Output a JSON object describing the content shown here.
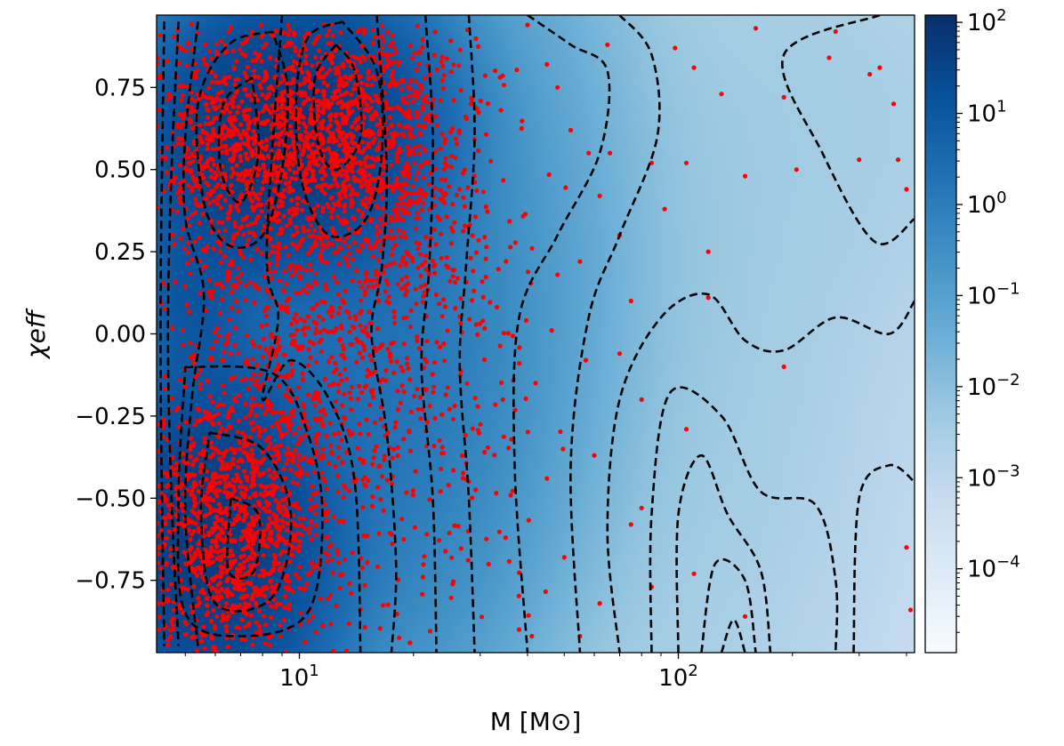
{
  "chart_data": {
    "type": "heatmap",
    "title": "",
    "xlabel": "M [M⊙]",
    "ylabel": "χeff",
    "x_scale": "log",
    "xlim": [
      4.2,
      420
    ],
    "ylim": [
      -0.97,
      0.97
    ],
    "x_ticks": [
      {
        "value": 10,
        "base": "10",
        "exp": "1"
      },
      {
        "value": 100,
        "base": "10",
        "exp": "2"
      }
    ],
    "y_ticks": [
      {
        "value": 0.75,
        "label": "0.75"
      },
      {
        "value": 0.5,
        "label": "0.50"
      },
      {
        "value": 0.25,
        "label": "0.25"
      },
      {
        "value": 0.0,
        "label": "0.00"
      },
      {
        "value": -0.25,
        "label": "−0.25"
      },
      {
        "value": -0.5,
        "label": "−0.50"
      },
      {
        "value": -0.75,
        "label": "−0.75"
      }
    ],
    "colorbar": {
      "scale": "log",
      "range": [
        1.2e-05,
        120
      ],
      "cmap": [
        "#f7fbff",
        "#deebf7",
        "#c6dbef",
        "#9ecae1",
        "#6baed6",
        "#4292c6",
        "#2171b5",
        "#08519c",
        "#08306b"
      ],
      "ticks": [
        {
          "value": 100,
          "base": "10",
          "exp": "2"
        },
        {
          "value": 10,
          "base": "10",
          "exp": "1"
        },
        {
          "value": 1,
          "base": "10",
          "exp": "0"
        },
        {
          "value": 0.1,
          "base": "10",
          "exp": "−1"
        },
        {
          "value": 0.01,
          "base": "10",
          "exp": "−2"
        },
        {
          "value": 0.001,
          "base": "10",
          "exp": "−3"
        },
        {
          "value": 0.0001,
          "base": "10",
          "exp": "−4"
        }
      ]
    },
    "density_clusters": [
      {
        "x": 10.5,
        "y": 0.62,
        "sx": 0.15,
        "sy": 0.2,
        "w": 60
      },
      {
        "x": 6.0,
        "y": -0.62,
        "sx": 0.14,
        "sy": 0.25,
        "w": 60
      },
      {
        "x": 6.5,
        "y": 0.55,
        "sx": 0.12,
        "sy": 0.2,
        "w": 30
      },
      {
        "x": 5.2,
        "y": 0.1,
        "sx": 0.08,
        "sy": 0.15,
        "w": 10
      },
      {
        "x": 14.0,
        "y": -0.1,
        "sx": 0.2,
        "sy": 0.45,
        "w": 2
      },
      {
        "x": 22.0,
        "y": 0.3,
        "sx": 0.22,
        "sy": 0.55,
        "w": 0.25
      },
      {
        "x": 60.0,
        "y": 0.0,
        "sx": 0.45,
        "sy": 0.9,
        "w": 0.006
      },
      {
        "x": 300.0,
        "y": 0.7,
        "sx": 0.35,
        "sy": 0.4,
        "w": 0.002
      }
    ],
    "scatter_series": {
      "name": "",
      "color": "#ff0000",
      "dense_regions": [
        {
          "x": 12.5,
          "y": 0.62,
          "sx": 0.14,
          "sy": 0.18,
          "n": 1100
        },
        {
          "x": 6.5,
          "y": 0.55,
          "sx": 0.12,
          "sy": 0.22,
          "n": 700
        },
        {
          "x": 6.5,
          "y": -0.6,
          "sx": 0.13,
          "sy": 0.22,
          "n": 1300
        },
        {
          "x": 11.0,
          "y": -0.05,
          "sx": 0.15,
          "sy": 0.35,
          "n": 700
        },
        {
          "x": 18.0,
          "y": 0.5,
          "sx": 0.14,
          "sy": 0.3,
          "n": 350
        },
        {
          "x": 22.0,
          "y": -0.2,
          "sx": 0.16,
          "sy": 0.45,
          "n": 250
        }
      ],
      "sparse_points": [
        [
          40,
          0.94
        ],
        [
          45,
          0.82
        ],
        [
          48,
          0.75
        ],
        [
          52,
          0.62
        ],
        [
          58,
          0.55
        ],
        [
          62,
          0.42
        ],
        [
          66,
          0.55
        ],
        [
          70,
          0.3
        ],
        [
          75,
          0.1
        ],
        [
          80,
          -0.2
        ],
        [
          85,
          0.52
        ],
        [
          92,
          0.38
        ],
        [
          98,
          0.87
        ],
        [
          105,
          0.52
        ],
        [
          110,
          0.81
        ],
        [
          120,
          0.25
        ],
        [
          130,
          0.73
        ],
        [
          150,
          0.48
        ],
        [
          160,
          0.93
        ],
        [
          190,
          0.72
        ],
        [
          205,
          0.5
        ],
        [
          250,
          0.84
        ],
        [
          260,
          0.92
        ],
        [
          300,
          0.53
        ],
        [
          320,
          0.79
        ],
        [
          340,
          0.81
        ],
        [
          370,
          0.7
        ],
        [
          380,
          0.53
        ],
        [
          400,
          0.44
        ],
        [
          120,
          0.11
        ],
        [
          190,
          -0.1
        ],
        [
          105,
          -0.29
        ],
        [
          75,
          -0.58
        ],
        [
          60,
          -0.37
        ],
        [
          62,
          -0.82
        ],
        [
          55,
          -0.92
        ],
        [
          110,
          -0.73
        ],
        [
          150,
          -0.86
        ],
        [
          400,
          -0.65
        ],
        [
          410,
          -0.84
        ],
        [
          57,
          -0.08
        ],
        [
          70,
          -0.06
        ],
        [
          80,
          -0.53
        ],
        [
          85,
          -0.77
        ],
        [
          45,
          -0.44
        ],
        [
          50,
          -0.68
        ],
        [
          38,
          -0.9
        ],
        [
          42,
          -0.15
        ],
        [
          35,
          -0.62
        ],
        [
          55,
          0.22
        ],
        [
          48,
          0.18
        ],
        [
          65,
          0.88
        ]
      ]
    },
    "contours": [
      [
        [
          4.4,
          0.95
        ],
        [
          4.3,
          0.0
        ],
        [
          4.4,
          -0.95
        ]
      ],
      [
        [
          4.8,
          0.95
        ],
        [
          4.6,
          0.5
        ],
        [
          4.5,
          0.0
        ],
        [
          4.6,
          -0.5
        ],
        [
          4.8,
          -0.95
        ]
      ],
      [
        [
          5.4,
          0.95
        ],
        [
          5.0,
          0.6
        ],
        [
          5.0,
          0.35
        ],
        [
          5.6,
          0.12
        ],
        [
          5.2,
          -0.2
        ],
        [
          5.0,
          -0.55
        ],
        [
          5.4,
          -0.95
        ]
      ],
      [
        [
          8.5,
          0.92
        ],
        [
          6.5,
          0.88
        ],
        [
          5.4,
          0.7
        ],
        [
          5.6,
          0.4
        ],
        [
          6.5,
          0.27
        ],
        [
          8.0,
          0.3
        ],
        [
          9.0,
          0.5
        ],
        [
          9.3,
          0.75
        ],
        [
          8.5,
          0.92
        ]
      ],
      [
        [
          7.5,
          0.78
        ],
        [
          6.3,
          0.7
        ],
        [
          6.2,
          0.5
        ],
        [
          7.0,
          0.4
        ],
        [
          7.8,
          0.55
        ],
        [
          7.5,
          0.78
        ]
      ],
      [
        [
          13.0,
          0.95
        ],
        [
          10.5,
          0.9
        ],
        [
          9.8,
          0.7
        ],
        [
          10.2,
          0.45
        ],
        [
          12.0,
          0.3
        ],
        [
          15.0,
          0.35
        ],
        [
          16.5,
          0.55
        ],
        [
          16.0,
          0.8
        ],
        [
          13.0,
          0.95
        ]
      ],
      [
        [
          12.5,
          0.88
        ],
        [
          11.0,
          0.78
        ],
        [
          11.2,
          0.58
        ],
        [
          12.5,
          0.5
        ],
        [
          14.5,
          0.6
        ],
        [
          14.0,
          0.8
        ],
        [
          12.5,
          0.88
        ]
      ],
      [
        [
          5.0,
          -0.1
        ],
        [
          8.5,
          -0.12
        ],
        [
          10.5,
          -0.3
        ],
        [
          11.5,
          -0.55
        ],
        [
          10.5,
          -0.85
        ],
        [
          7.0,
          -0.92
        ],
        [
          5.0,
          -0.85
        ],
        [
          4.8,
          -0.5
        ],
        [
          5.0,
          -0.1
        ]
      ],
      [
        [
          5.8,
          -0.3
        ],
        [
          8.0,
          -0.35
        ],
        [
          9.5,
          -0.55
        ],
        [
          8.5,
          -0.8
        ],
        [
          6.0,
          -0.82
        ],
        [
          5.5,
          -0.55
        ],
        [
          5.8,
          -0.3
        ]
      ],
      [
        [
          6.6,
          -0.5
        ],
        [
          7.8,
          -0.55
        ],
        [
          7.6,
          -0.72
        ],
        [
          6.5,
          -0.72
        ],
        [
          6.6,
          -0.5
        ]
      ],
      [
        [
          9.0,
          0.97
        ],
        [
          8.2,
          0.25
        ],
        [
          8.8,
          0.05
        ],
        [
          8.0,
          -0.2
        ],
        [
          9.5,
          -0.08
        ],
        [
          12.0,
          -0.2
        ],
        [
          14.0,
          -0.45
        ],
        [
          14.5,
          -0.97
        ]
      ],
      [
        [
          16.0,
          0.97
        ],
        [
          17.0,
          0.5
        ],
        [
          16.5,
          0.2
        ],
        [
          15.5,
          0.0
        ],
        [
          17.0,
          -0.3
        ],
        [
          18.0,
          -0.7
        ],
        [
          17.5,
          -0.97
        ]
      ],
      [
        [
          21.5,
          0.97
        ],
        [
          22.5,
          0.6
        ],
        [
          22.0,
          0.2
        ],
        [
          21.0,
          -0.1
        ],
        [
          22.5,
          -0.5
        ],
        [
          23.0,
          -0.97
        ]
      ],
      [
        [
          28.0,
          0.97
        ],
        [
          29.0,
          0.6
        ],
        [
          27.5,
          0.2
        ],
        [
          26.5,
          -0.1
        ],
        [
          28.0,
          -0.5
        ],
        [
          29.0,
          -0.97
        ]
      ],
      [
        [
          40.0,
          0.97
        ],
        [
          52.0,
          0.88
        ],
        [
          65.0,
          0.8
        ],
        [
          62.0,
          0.55
        ],
        [
          48.0,
          0.3
        ],
        [
          38.0,
          0.05
        ],
        [
          37.0,
          -0.4
        ],
        [
          40.0,
          -0.97
        ]
      ],
      [
        [
          70.0,
          0.97
        ],
        [
          85.0,
          0.85
        ],
        [
          88.0,
          0.6
        ],
        [
          70.0,
          0.3
        ],
        [
          58.0,
          0.05
        ],
        [
          52.0,
          -0.4
        ],
        [
          55.0,
          -0.97
        ]
      ],
      [
        [
          340.0,
          0.97
        ],
        [
          190.0,
          0.85
        ],
        [
          240.0,
          0.55
        ],
        [
          330.0,
          0.28
        ],
        [
          420.0,
          0.35
        ]
      ],
      [
        [
          420.0,
          0.1
        ],
        [
          360.0,
          0.0
        ],
        [
          260.0,
          0.05
        ],
        [
          190.0,
          -0.05
        ],
        [
          150.0,
          -0.02
        ],
        [
          120.0,
          0.12
        ],
        [
          90.0,
          0.05
        ],
        [
          70.0,
          -0.2
        ],
        [
          65.0,
          -0.6
        ],
        [
          70.0,
          -0.97
        ]
      ],
      [
        [
          85.0,
          -0.97
        ],
        [
          85.0,
          -0.55
        ],
        [
          95.0,
          -0.18
        ],
        [
          130.0,
          -0.25
        ],
        [
          165.0,
          -0.48
        ],
        [
          230.0,
          -0.52
        ],
        [
          260.0,
          -0.75
        ],
        [
          260.0,
          -0.97
        ]
      ],
      [
        [
          100.0,
          -0.97
        ],
        [
          100.0,
          -0.55
        ],
        [
          115.0,
          -0.37
        ],
        [
          135.0,
          -0.55
        ],
        [
          165.0,
          -0.72
        ],
        [
          175.0,
          -0.97
        ]
      ],
      [
        [
          115.0,
          -0.97
        ],
        [
          125.0,
          -0.7
        ],
        [
          150.0,
          -0.75
        ],
        [
          160.0,
          -0.97
        ]
      ],
      [
        [
          130.0,
          -0.97
        ],
        [
          140.0,
          -0.87
        ],
        [
          150.0,
          -0.97
        ]
      ],
      [
        [
          290.0,
          -0.97
        ],
        [
          300.0,
          -0.5
        ],
        [
          360.0,
          -0.4
        ],
        [
          420.0,
          -0.45
        ]
      ]
    ]
  }
}
